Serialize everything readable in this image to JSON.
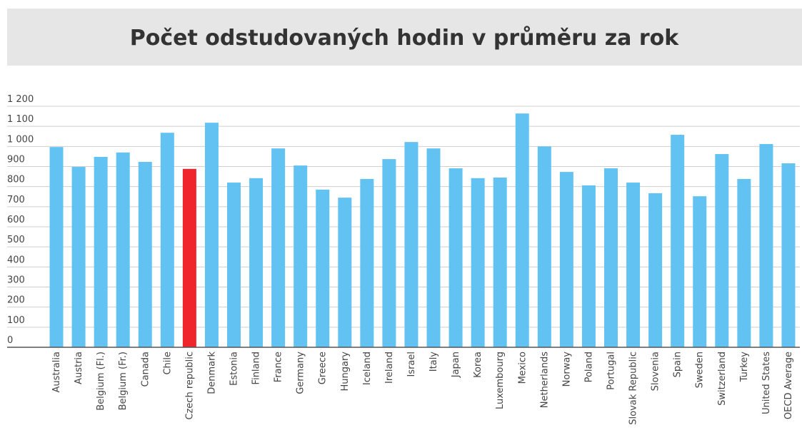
{
  "chart_data": {
    "type": "bar",
    "title": "Počet odstudovaných hodin v průměru za rok",
    "categories": [
      "Australia",
      "Austria",
      "Belgium (Fl.)",
      "Belgium (Fr.)",
      "Canada",
      "Chile",
      "Czech republic",
      "Denmark",
      "Estonia",
      "Finland",
      "France",
      "Germany",
      "Greece",
      "Hungary",
      "Iceland",
      "Ireland",
      "Israel",
      "Italy",
      "Japan",
      "Korea",
      "Luxembourg",
      "Mexico",
      "Netherlands",
      "Norway",
      "Poland",
      "Portugal",
      "Slovak Republic",
      "Slovenia",
      "Spain",
      "Sweden",
      "Switzerland",
      "Turkey",
      "United States",
      "OECD Average"
    ],
    "values": [
      997,
      898,
      948,
      970,
      923,
      1068,
      888,
      1118,
      820,
      842,
      990,
      905,
      785,
      745,
      838,
      937,
      1022,
      990,
      891,
      842,
      845,
      1164,
      1000,
      873,
      806,
      891,
      820,
      767,
      1058,
      752,
      962,
      838,
      1012,
      916
    ],
    "colors": [
      "#62c3f2",
      "#62c3f2",
      "#62c3f2",
      "#62c3f2",
      "#62c3f2",
      "#62c3f2",
      "#f0242b",
      "#62c3f2",
      "#62c3f2",
      "#62c3f2",
      "#62c3f2",
      "#62c3f2",
      "#62c3f2",
      "#62c3f2",
      "#62c3f2",
      "#62c3f2",
      "#62c3f2",
      "#62c3f2",
      "#62c3f2",
      "#62c3f2",
      "#62c3f2",
      "#62c3f2",
      "#62c3f2",
      "#62c3f2",
      "#62c3f2",
      "#62c3f2",
      "#62c3f2",
      "#62c3f2",
      "#62c3f2",
      "#62c3f2",
      "#62c3f2",
      "#62c3f2",
      "#62c3f2",
      "#62c3f2"
    ],
    "ylim": [
      0,
      1200
    ],
    "yticks": [
      0,
      100,
      200,
      300,
      400,
      500,
      600,
      700,
      800,
      900,
      {
        "value": 1000,
        "label": "1 000"
      },
      {
        "value": 1100,
        "label": "1 100"
      },
      {
        "value": 1200,
        "label": "1 200"
      }
    ],
    "grid": true
  }
}
